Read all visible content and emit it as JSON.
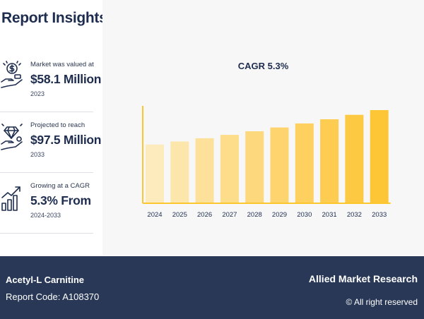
{
  "report": {
    "title": "Report Insights"
  },
  "stats": [
    {
      "caption": "Market was valued at",
      "value": "$58.1 Million",
      "year": "2023",
      "icon": "money-hand-icon"
    },
    {
      "caption": "Projected to reach",
      "value": "$97.5 Million",
      "year": "2033",
      "icon": "diamond-hand-icon"
    },
    {
      "caption": "Growing at a CAGR",
      "value": "5.3% From",
      "year": "2024-2033",
      "icon": "growth-chart-icon"
    }
  ],
  "chart_data": {
    "type": "bar",
    "title": "CAGR 5.3%",
    "categories": [
      "2024",
      "2025",
      "2026",
      "2027",
      "2028",
      "2029",
      "2030",
      "2031",
      "2032",
      "2033"
    ],
    "values": [
      61.2,
      64.4,
      67.8,
      71.4,
      75.2,
      79.2,
      83.4,
      87.8,
      92.5,
      97.5
    ],
    "ylim": [
      0,
      97.5
    ],
    "grid": false,
    "bar_colors": [
      "#fdebbd",
      "#fde6ab",
      "#fde19b",
      "#fddc8a",
      "#fdd87c",
      "#fdd46d",
      "#fdd05f",
      "#fdcc50",
      "#fdc943",
      "#fdc636"
    ],
    "axis_color": "#fcc62f"
  },
  "footer": {
    "product": "Acetyl-L Carnitine",
    "report_code": "Report Code: A108370",
    "brand": "Allied Market Research",
    "rights": "© All right reserved"
  }
}
